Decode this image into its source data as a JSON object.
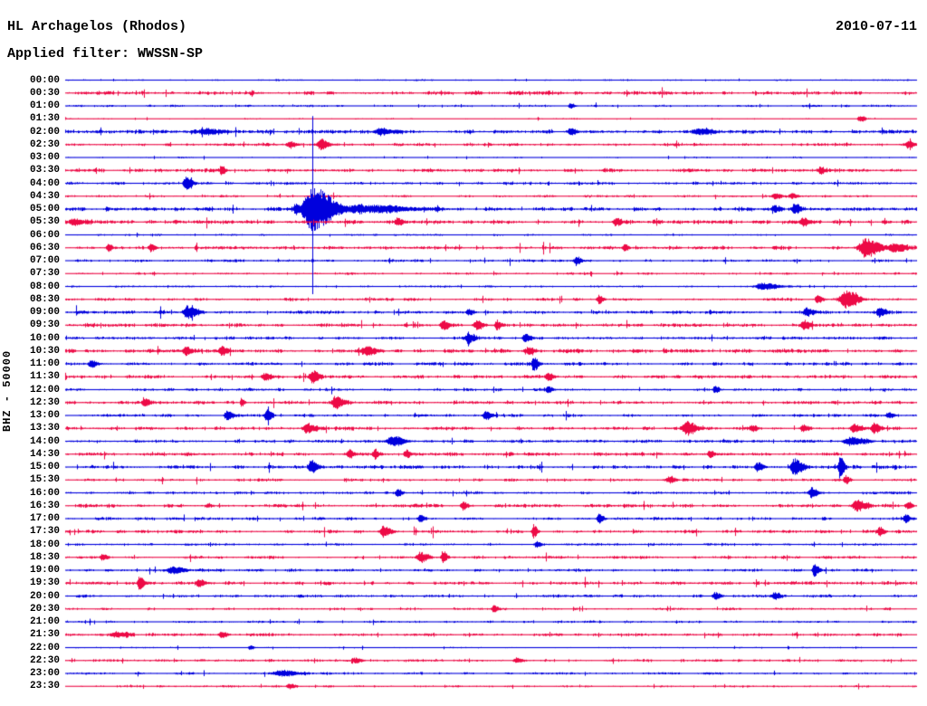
{
  "header": {
    "station": "HL Archagelos (Rhodos)",
    "date": "2010-07-11",
    "filter_line": "Applied filter: WWSSN-SP"
  },
  "y_axis_label": "BHZ - 50000",
  "chart_data": {
    "type": "line",
    "subtype": "helicorder-seismogram",
    "title": "HL Archagelos (Rhodos)",
    "date": "2010-07-11",
    "filter": "WWSSN-SP",
    "channel": "BHZ",
    "scale": 50000,
    "minutes_per_row": 30,
    "grid": false,
    "legend": false,
    "colors": {
      "blue": "#0000dd",
      "red": "#ed0a46",
      "text": "#000000",
      "background": "#ffffff"
    },
    "clip_line": {
      "minute": 8.7,
      "from_time": "01:30",
      "to_time": "08:00",
      "color": "blue"
    },
    "rows": [
      {
        "time": "00:00",
        "color": "blue",
        "noise": 0.7,
        "events": []
      },
      {
        "time": "00:30",
        "color": "red",
        "noise": 1.6,
        "events": []
      },
      {
        "time": "01:00",
        "color": "blue",
        "noise": 0.9,
        "events": [
          {
            "m": 17.8,
            "a": 3,
            "w": 1.5
          }
        ]
      },
      {
        "time": "01:30",
        "color": "red",
        "noise": 0.6,
        "events": [
          {
            "m": 28.0,
            "a": 4,
            "w": 1.5
          }
        ]
      },
      {
        "time": "02:00",
        "color": "blue",
        "noise": 1.7,
        "events": [
          {
            "m": 5.0,
            "a": 3,
            "w": 6
          },
          {
            "m": 11.1,
            "a": 3,
            "w": 4
          },
          {
            "m": 17.8,
            "a": 3.5,
            "w": 2
          },
          {
            "m": 22.3,
            "a": 3,
            "w": 4
          }
        ]
      },
      {
        "time": "02:30",
        "color": "red",
        "noise": 1.3,
        "events": [
          {
            "m": 7.9,
            "a": 4,
            "w": 2
          },
          {
            "m": 9.0,
            "a": 6,
            "w": 2.5
          },
          {
            "m": 29.7,
            "a": 4,
            "w": 2
          }
        ]
      },
      {
        "time": "03:00",
        "color": "blue",
        "noise": 0.7,
        "events": []
      },
      {
        "time": "03:30",
        "color": "red",
        "noise": 1.5,
        "events": [
          {
            "m": 5.5,
            "a": 4,
            "w": 1.5
          },
          {
            "m": 26.6,
            "a": 4,
            "w": 1.5
          }
        ]
      },
      {
        "time": "04:00",
        "color": "blue",
        "noise": 1.2,
        "events": [
          {
            "m": 4.25,
            "a": 7,
            "w": 2
          }
        ]
      },
      {
        "time": "04:30",
        "color": "red",
        "noise": 1.0,
        "events": [
          {
            "m": 25.0,
            "a": 3,
            "w": 2
          },
          {
            "m": 25.6,
            "a": 3,
            "w": 2
          }
        ]
      },
      {
        "time": "05:00",
        "color": "blue",
        "noise": 1.7,
        "events": [
          {
            "m": 8.1,
            "a": 5,
            "w": 1.5
          },
          {
            "m": 8.7,
            "a": 24,
            "w": 7
          },
          {
            "m": 10.5,
            "a": 4,
            "w": 16
          },
          {
            "m": 25.0,
            "a": 4,
            "w": 2
          },
          {
            "m": 25.7,
            "a": 5,
            "w": 2
          }
        ]
      },
      {
        "time": "05:30",
        "color": "red",
        "noise": 1.7,
        "events": [
          {
            "m": 0.3,
            "a": 4,
            "w": 3
          },
          {
            "m": 11.7,
            "a": 4,
            "w": 2
          },
          {
            "m": 19.4,
            "a": 4,
            "w": 2
          },
          {
            "m": 26.0,
            "a": 4,
            "w": 2
          }
        ]
      },
      {
        "time": "06:00",
        "color": "blue",
        "noise": 0.8,
        "events": []
      },
      {
        "time": "06:30",
        "color": "red",
        "noise": 1.5,
        "events": [
          {
            "m": 1.5,
            "a": 4,
            "w": 1.5
          },
          {
            "m": 3.0,
            "a": 4,
            "w": 1.5
          },
          {
            "m": 19.7,
            "a": 4,
            "w": 1.5
          },
          {
            "m": 28.2,
            "a": 10,
            "w": 5
          },
          {
            "m": 29.2,
            "a": 5,
            "w": 4
          }
        ]
      },
      {
        "time": "07:00",
        "color": "blue",
        "noise": 1.1,
        "events": [
          {
            "m": 18.0,
            "a": 5,
            "w": 1.5
          }
        ]
      },
      {
        "time": "07:30",
        "color": "red",
        "noise": 1.0,
        "events": []
      },
      {
        "time": "08:00",
        "color": "blue",
        "noise": 0.8,
        "events": [
          {
            "m": 24.6,
            "a": 4,
            "w": 5
          }
        ]
      },
      {
        "time": "08:30",
        "color": "red",
        "noise": 1.3,
        "events": [
          {
            "m": 18.8,
            "a": 5,
            "w": 1.5
          },
          {
            "m": 26.5,
            "a": 5,
            "w": 1.5
          },
          {
            "m": 27.5,
            "a": 10,
            "w": 4
          }
        ]
      },
      {
        "time": "09:00",
        "color": "blue",
        "noise": 1.5,
        "events": [
          {
            "m": 4.3,
            "a": 7,
            "w": 3
          },
          {
            "m": 14.2,
            "a": 4,
            "w": 1.5
          },
          {
            "m": 26.1,
            "a": 5,
            "w": 2
          },
          {
            "m": 28.7,
            "a": 5,
            "w": 2
          }
        ]
      },
      {
        "time": "09:30",
        "color": "red",
        "noise": 1.6,
        "events": [
          {
            "m": 13.3,
            "a": 5,
            "w": 2
          },
          {
            "m": 14.5,
            "a": 5,
            "w": 2
          },
          {
            "m": 15.2,
            "a": 6,
            "w": 1.5
          },
          {
            "m": 26.0,
            "a": 5,
            "w": 2
          }
        ]
      },
      {
        "time": "10:00",
        "color": "blue",
        "noise": 1.2,
        "events": [
          {
            "m": 14.2,
            "a": 6,
            "w": 2
          },
          {
            "m": 16.2,
            "a": 4,
            "w": 2
          }
        ]
      },
      {
        "time": "10:30",
        "color": "red",
        "noise": 1.6,
        "events": [
          {
            "m": 4.25,
            "a": 5,
            "w": 2
          },
          {
            "m": 5.5,
            "a": 5,
            "w": 2
          },
          {
            "m": 10.6,
            "a": 5,
            "w": 3
          },
          {
            "m": 16.3,
            "a": 4,
            "w": 2
          }
        ]
      },
      {
        "time": "11:00",
        "color": "blue",
        "noise": 1.5,
        "events": [
          {
            "m": 0.9,
            "a": 4,
            "w": 2
          },
          {
            "m": 16.5,
            "a": 8,
            "w": 1.5
          }
        ]
      },
      {
        "time": "11:30",
        "color": "red",
        "noise": 1.5,
        "events": [
          {
            "m": 7.0,
            "a": 4,
            "w": 2
          },
          {
            "m": 8.7,
            "a": 7,
            "w": 2
          },
          {
            "m": 17.0,
            "a": 4,
            "w": 2
          }
        ]
      },
      {
        "time": "12:00",
        "color": "blue",
        "noise": 1.2,
        "events": [
          {
            "m": 17.0,
            "a": 4,
            "w": 1.5
          },
          {
            "m": 22.9,
            "a": 4,
            "w": 1.5
          }
        ]
      },
      {
        "time": "12:30",
        "color": "red",
        "noise": 1.5,
        "events": [
          {
            "m": 2.8,
            "a": 4,
            "w": 2
          },
          {
            "m": 6.2,
            "a": 5,
            "w": 1
          },
          {
            "m": 9.5,
            "a": 7,
            "w": 2.5
          }
        ]
      },
      {
        "time": "13:00",
        "color": "blue",
        "noise": 1.3,
        "events": [
          {
            "m": 5.7,
            "a": 5,
            "w": 2
          },
          {
            "m": 7.1,
            "a": 7,
            "w": 1.5
          },
          {
            "m": 14.8,
            "a": 4,
            "w": 2
          },
          {
            "m": 29.0,
            "a": 3,
            "w": 2
          }
        ]
      },
      {
        "time": "13:30",
        "color": "red",
        "noise": 1.5,
        "events": [
          {
            "m": 8.5,
            "a": 5,
            "w": 3
          },
          {
            "m": 21.9,
            "a": 8,
            "w": 3
          },
          {
            "m": 24.2,
            "a": 4,
            "w": 1.3
          },
          {
            "m": 26.0,
            "a": 4,
            "w": 2
          },
          {
            "m": 27.8,
            "a": 5,
            "w": 2.5
          },
          {
            "m": 28.5,
            "a": 6,
            "w": 2
          }
        ]
      },
      {
        "time": "14:00",
        "color": "blue",
        "noise": 1.3,
        "events": [
          {
            "m": 11.5,
            "a": 5,
            "w": 4
          },
          {
            "m": 27.7,
            "a": 4,
            "w": 5
          }
        ]
      },
      {
        "time": "14:30",
        "color": "red",
        "noise": 1.5,
        "events": [
          {
            "m": 10.0,
            "a": 5,
            "w": 1.5
          },
          {
            "m": 10.9,
            "a": 5,
            "w": 1.5
          },
          {
            "m": 12.0,
            "a": 5,
            "w": 1.5
          },
          {
            "m": 22.7,
            "a": 4,
            "w": 1.5
          }
        ]
      },
      {
        "time": "15:00",
        "color": "blue",
        "noise": 1.5,
        "events": [
          {
            "m": 8.65,
            "a": 7,
            "w": 2
          },
          {
            "m": 24.4,
            "a": 5,
            "w": 2
          },
          {
            "m": 25.7,
            "a": 9,
            "w": 3
          },
          {
            "m": 27.3,
            "a": 13,
            "w": 1.3
          }
        ]
      },
      {
        "time": "15:30",
        "color": "red",
        "noise": 1.2,
        "events": [
          {
            "m": 21.3,
            "a": 4,
            "w": 2
          },
          {
            "m": 27.5,
            "a": 5,
            "w": 1.5
          }
        ]
      },
      {
        "time": "16:00",
        "color": "blue",
        "noise": 1.2,
        "events": [
          {
            "m": 11.7,
            "a": 5,
            "w": 1.5
          },
          {
            "m": 26.3,
            "a": 6,
            "w": 2
          }
        ]
      },
      {
        "time": "16:30",
        "color": "red",
        "noise": 1.5,
        "events": [
          {
            "m": 14.0,
            "a": 5,
            "w": 1.5
          },
          {
            "m": 27.9,
            "a": 6,
            "w": 3.5
          },
          {
            "m": 29.7,
            "a": 4,
            "w": 1.5
          }
        ]
      },
      {
        "time": "17:00",
        "color": "blue",
        "noise": 1.2,
        "events": [
          {
            "m": 12.5,
            "a": 4,
            "w": 1.5
          },
          {
            "m": 18.8,
            "a": 6,
            "w": 1.5
          },
          {
            "m": 29.6,
            "a": 5,
            "w": 1.5
          }
        ]
      },
      {
        "time": "17:30",
        "color": "red",
        "noise": 1.4,
        "events": [
          {
            "m": 11.2,
            "a": 6,
            "w": 2.5
          },
          {
            "m": 16.5,
            "a": 8,
            "w": 1.3
          },
          {
            "m": 28.7,
            "a": 5,
            "w": 1.5
          }
        ]
      },
      {
        "time": "18:00",
        "color": "blue",
        "noise": 1.0,
        "events": [
          {
            "m": 16.6,
            "a": 4,
            "w": 1.5
          }
        ]
      },
      {
        "time": "18:30",
        "color": "red",
        "noise": 1.3,
        "events": [
          {
            "m": 1.3,
            "a": 4,
            "w": 1.5
          },
          {
            "m": 12.5,
            "a": 6,
            "w": 2.5
          },
          {
            "m": 13.3,
            "a": 7,
            "w": 1.3
          }
        ]
      },
      {
        "time": "19:00",
        "color": "blue",
        "noise": 1.2,
        "events": [
          {
            "m": 3.8,
            "a": 4,
            "w": 4
          },
          {
            "m": 26.4,
            "a": 7,
            "w": 1.5
          }
        ]
      },
      {
        "time": "19:30",
        "color": "red",
        "noise": 1.4,
        "events": [
          {
            "m": 2.6,
            "a": 7,
            "w": 1.5
          },
          {
            "m": 4.7,
            "a": 4,
            "w": 2
          }
        ]
      },
      {
        "time": "20:00",
        "color": "blue",
        "noise": 1.2,
        "events": [
          {
            "m": 22.9,
            "a": 4,
            "w": 2
          },
          {
            "m": 25.0,
            "a": 4,
            "w": 2
          }
        ]
      },
      {
        "time": "20:30",
        "color": "red",
        "noise": 1.0,
        "events": [
          {
            "m": 15.1,
            "a": 4,
            "w": 1.5
          }
        ]
      },
      {
        "time": "21:00",
        "color": "blue",
        "noise": 1.0,
        "events": []
      },
      {
        "time": "21:30",
        "color": "red",
        "noise": 1.3,
        "events": [
          {
            "m": 1.8,
            "a": 3,
            "w": 4
          },
          {
            "m": 5.5,
            "a": 4,
            "w": 2
          }
        ]
      },
      {
        "time": "22:00",
        "color": "blue",
        "noise": 0.6,
        "events": [
          {
            "m": 6.5,
            "a": 2.5,
            "w": 1.5
          }
        ]
      },
      {
        "time": "22:30",
        "color": "red",
        "noise": 1.1,
        "events": [
          {
            "m": 10.2,
            "a": 3,
            "w": 2
          },
          {
            "m": 15.9,
            "a": 3,
            "w": 2
          }
        ]
      },
      {
        "time": "23:00",
        "color": "blue",
        "noise": 1.0,
        "events": [
          {
            "m": 7.6,
            "a": 3,
            "w": 6
          }
        ]
      },
      {
        "time": "23:30",
        "color": "red",
        "noise": 0.9,
        "events": [
          {
            "m": 7.9,
            "a": 3,
            "w": 2
          }
        ]
      }
    ]
  }
}
